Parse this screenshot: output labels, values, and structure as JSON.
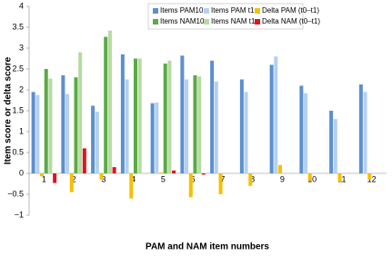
{
  "chart_data": {
    "type": "bar",
    "x_label": "PAM and NAM item numbers",
    "y_label": "Item score or delta score",
    "categories": [
      "1",
      "2",
      "3",
      "4",
      "5",
      "6",
      "7",
      "8",
      "9",
      "10",
      "11",
      "12"
    ],
    "series": [
      {
        "name": "Items PAM10",
        "color": "#5b8fd0",
        "values": [
          1.95,
          2.35,
          1.62,
          2.85,
          1.68,
          2.82,
          2.7,
          2.25,
          2.6,
          2.1,
          1.5,
          2.13
        ]
      },
      {
        "name": "Items PAM t1",
        "color": "#b4d0ee",
        "values": [
          1.88,
          1.9,
          1.48,
          2.25,
          1.7,
          2.25,
          2.2,
          1.95,
          2.8,
          1.92,
          1.3,
          1.95
        ]
      },
      {
        "name": "Delta PAM (t0–t1)",
        "color": "#f5c000",
        "values": [
          -0.07,
          -0.45,
          -0.15,
          -0.6,
          0.02,
          -0.57,
          -0.5,
          -0.3,
          0.2,
          -0.18,
          -0.2,
          -0.15
        ]
      },
      {
        "name": "Items NAM10",
        "color": "#5aaa46",
        "values": [
          2.5,
          2.3,
          3.27,
          2.75,
          2.63,
          2.35,
          null,
          null,
          null,
          null,
          null,
          null
        ]
      },
      {
        "name": "Items NAM t1",
        "color": "#b6dba0",
        "values": [
          2.27,
          2.9,
          3.42,
          2.75,
          2.7,
          2.32,
          null,
          null,
          null,
          null,
          null,
          null
        ]
      },
      {
        "name": "Delta NAM (t0–t1)",
        "color": "#e0141e",
        "values": [
          -0.23,
          0.6,
          0.15,
          0,
          0.07,
          -0.03,
          null,
          null,
          null,
          null,
          null,
          null
        ]
      }
    ],
    "ylim": [
      -1,
      4
    ],
    "yticks": [
      {
        "value": -1,
        "label": "−1"
      },
      {
        "value": -0.5,
        "label": "−0.5"
      },
      0,
      0.5,
      1,
      1.5,
      2,
      2.5,
      3,
      3.5,
      4
    ],
    "grid": false,
    "legend": "top"
  }
}
